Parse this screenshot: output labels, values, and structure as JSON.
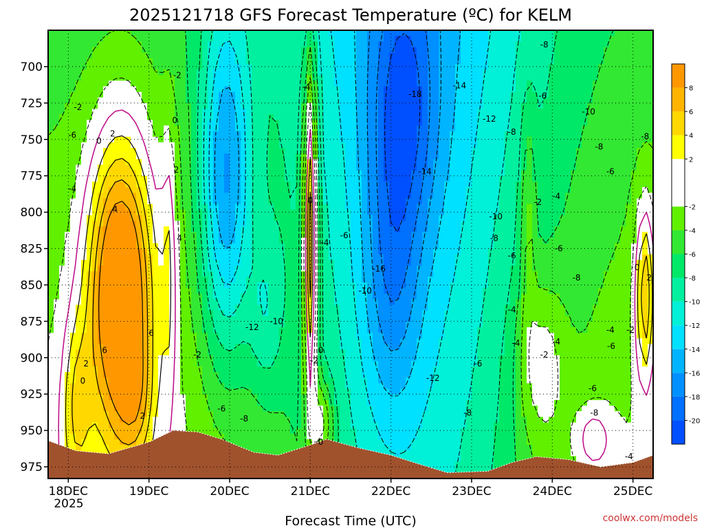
{
  "chart_data": {
    "type": "heatmap",
    "title": "2025121718 GFS Forecast Temperature (ºC) for KELM",
    "xlabel": "Forecast Time (UTC)",
    "ylabel": "",
    "x_ticks": [
      "18DEC",
      "19DEC",
      "20DEC",
      "21DEC",
      "22DEC",
      "23DEC",
      "24DEC",
      "25DEC"
    ],
    "x_year": "2025",
    "y_ticks": [
      700,
      725,
      750,
      775,
      800,
      825,
      850,
      875,
      900,
      925,
      950,
      975
    ],
    "y_range": [
      675,
      983
    ],
    "x_range_days": [
      17.75,
      25.25
    ],
    "colorbar": {
      "ticks": [
        8,
        6,
        4,
        2,
        -2,
        -4,
        -6,
        -8,
        -10,
        -12,
        -14,
        -16,
        -18,
        -20
      ],
      "range": [
        -22,
        10
      ],
      "bands": [
        {
          "min": -22,
          "max": -20,
          "color": "#0050ff"
        },
        {
          "min": -20,
          "max": -18,
          "color": "#0070ff"
        },
        {
          "min": -18,
          "max": -16,
          "color": "#0090ff"
        },
        {
          "min": -16,
          "max": -14,
          "color": "#00b4ff"
        },
        {
          "min": -14,
          "max": -12,
          "color": "#00e0ff"
        },
        {
          "min": -12,
          "max": -10,
          "color": "#00f0d8"
        },
        {
          "min": -10,
          "max": -8,
          "color": "#00f0a0"
        },
        {
          "min": -8,
          "max": -6,
          "color": "#00e868"
        },
        {
          "min": -6,
          "max": -4,
          "color": "#32e832"
        },
        {
          "min": -4,
          "max": -2,
          "color": "#60f000"
        },
        {
          "min": -2,
          "max": 2,
          "color": "#ffffff"
        },
        {
          "min": 2,
          "max": 4,
          "color": "#ffff00"
        },
        {
          "min": 4,
          "max": 6,
          "color": "#ffd800"
        },
        {
          "min": 6,
          "max": 8,
          "color": "#ffb400"
        },
        {
          "min": 8,
          "max": 10,
          "color": "#ff9800"
        }
      ]
    },
    "terrain_color": "#a0522d",
    "contour_labels": [
      {
        "text": "-2",
        "day": 18.12,
        "p": 728
      },
      {
        "text": "-6",
        "day": 18.05,
        "p": 747
      },
      {
        "text": "-4",
        "day": 18.05,
        "p": 784
      },
      {
        "text": "0",
        "day": 18.38,
        "p": 751
      },
      {
        "text": "2",
        "day": 18.55,
        "p": 746
      },
      {
        "text": "4",
        "day": 18.58,
        "p": 798
      },
      {
        "text": "-2",
        "day": 19.35,
        "p": 706
      },
      {
        "text": "0",
        "day": 19.32,
        "p": 737
      },
      {
        "text": "2",
        "day": 19.34,
        "p": 771
      },
      {
        "text": "4",
        "day": 19.38,
        "p": 818
      },
      {
        "text": "6",
        "day": 18.45,
        "p": 895
      },
      {
        "text": "6",
        "day": 19.03,
        "p": 883
      },
      {
        "text": "2",
        "day": 18.22,
        "p": 904
      },
      {
        "text": "0",
        "day": 18.18,
        "p": 916
      },
      {
        "text": "2",
        "day": 18.92,
        "p": 940
      },
      {
        "text": "-2",
        "day": 19.6,
        "p": 898
      },
      {
        "text": "-6",
        "day": 19.9,
        "p": 935
      },
      {
        "text": "-8",
        "day": 20.18,
        "p": 942
      },
      {
        "text": "-12",
        "day": 20.28,
        "p": 879
      },
      {
        "text": "-10",
        "day": 20.58,
        "p": 875
      },
      {
        "text": "-4",
        "day": 20.95,
        "p": 714
      },
      {
        "text": "0",
        "day": 21.0,
        "p": 792
      },
      {
        "text": "-4",
        "day": 21.18,
        "p": 821
      },
      {
        "text": "-6",
        "day": 21.42,
        "p": 816
      },
      {
        "text": "0",
        "day": 21.13,
        "p": 895
      },
      {
        "text": "-2",
        "day": 21.05,
        "p": 902
      },
      {
        "text": "0",
        "day": 21.13,
        "p": 958
      },
      {
        "text": "-10",
        "day": 21.68,
        "p": 854
      },
      {
        "text": "-16",
        "day": 21.85,
        "p": 839
      },
      {
        "text": "-14",
        "day": 22.42,
        "p": 772
      },
      {
        "text": "-18",
        "day": 22.3,
        "p": 719
      },
      {
        "text": "-14",
        "day": 22.85,
        "p": 713
      },
      {
        "text": "-12",
        "day": 23.22,
        "p": 736
      },
      {
        "text": "-10",
        "day": 23.3,
        "p": 803
      },
      {
        "text": "-8",
        "day": 23.28,
        "p": 818
      },
      {
        "text": "-6",
        "day": 23.5,
        "p": 830
      },
      {
        "text": "-8",
        "day": 23.5,
        "p": 745
      },
      {
        "text": "-8",
        "day": 23.9,
        "p": 685
      },
      {
        "text": "-6",
        "day": 23.88,
        "p": 720
      },
      {
        "text": "-12",
        "day": 22.52,
        "p": 914
      },
      {
        "text": "-8",
        "day": 22.95,
        "p": 938
      },
      {
        "text": "-6",
        "day": 23.08,
        "p": 904
      },
      {
        "text": "-4",
        "day": 23.5,
        "p": 867
      },
      {
        "text": "-4",
        "day": 23.55,
        "p": 890
      },
      {
        "text": "-2",
        "day": 23.9,
        "p": 898
      },
      {
        "text": "-2",
        "day": 23.82,
        "p": 793
      },
      {
        "text": "-4",
        "day": 24.05,
        "p": 789
      },
      {
        "text": "-6",
        "day": 24.08,
        "p": 825
      },
      {
        "text": "-4",
        "day": 24.05,
        "p": 889
      },
      {
        "text": "-8",
        "day": 24.3,
        "p": 845
      },
      {
        "text": "-10",
        "day": 24.45,
        "p": 731
      },
      {
        "text": "-8",
        "day": 24.58,
        "p": 755
      },
      {
        "text": "-6",
        "day": 24.72,
        "p": 772
      },
      {
        "text": "-8",
        "day": 25.15,
        "p": 748
      },
      {
        "text": "-4",
        "day": 24.72,
        "p": 881
      },
      {
        "text": "-2",
        "day": 24.97,
        "p": 881
      },
      {
        "text": "-6",
        "day": 24.73,
        "p": 892
      },
      {
        "text": "-6",
        "day": 24.5,
        "p": 921
      },
      {
        "text": "-8",
        "day": 24.52,
        "p": 938
      },
      {
        "text": "-4",
        "day": 24.95,
        "p": 968
      },
      {
        "text": "0",
        "day": 25.05,
        "p": 838
      },
      {
        "text": "2",
        "day": 25.2,
        "p": 845
      }
    ]
  },
  "credit": "coolwx.com/models"
}
